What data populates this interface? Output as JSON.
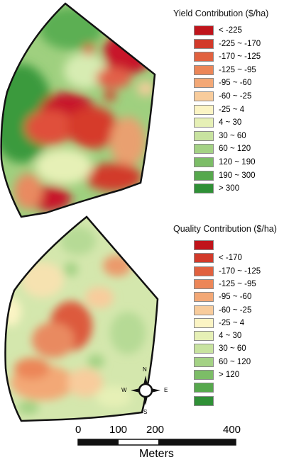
{
  "yield_legend": {
    "title": "Yield Contribution ($/ha)",
    "items": [
      {
        "label": "< -225",
        "color": "#c0141b"
      },
      {
        "label": "-225 ~ -170",
        "color": "#d23a2a"
      },
      {
        "label": "-170 ~ -125",
        "color": "#e1613f"
      },
      {
        "label": "-125 ~ -95",
        "color": "#ec8658"
      },
      {
        "label": "-95 ~ -60",
        "color": "#f3a876"
      },
      {
        "label": "-60 ~ -25",
        "color": "#f8cc9c"
      },
      {
        "label": "-25 ~ 4",
        "color": "#fbf4c4"
      },
      {
        "label": "4 ~ 30",
        "color": "#e6f0b6"
      },
      {
        "label": "30 ~ 60",
        "color": "#c8e3a0"
      },
      {
        "label": "60 ~ 120",
        "color": "#a4d285"
      },
      {
        "label": "120 ~ 190",
        "color": "#7cbd67"
      },
      {
        "label": "190 ~  300",
        "color": "#56a84d"
      },
      {
        "label": "> 300",
        "color": "#2f9036"
      }
    ]
  },
  "quality_legend": {
    "title": "Quality Contribution ($/ha)",
    "items": [
      {
        "label": "",
        "color": "#c0141b"
      },
      {
        "label": "< -170",
        "color": "#d23a2a"
      },
      {
        "label": "-170 ~ -125",
        "color": "#e1613f"
      },
      {
        "label": "-125 ~ -95",
        "color": "#ec8658"
      },
      {
        "label": "-95 ~ -60",
        "color": "#f3a876"
      },
      {
        "label": "-60 ~ -25",
        "color": "#f8cc9c"
      },
      {
        "label": "-25 ~ 4",
        "color": "#fbf4c4"
      },
      {
        "label": "4 ~ 30",
        "color": "#e6f0b6"
      },
      {
        "label": "30 ~ 60",
        "color": "#c8e3a0"
      },
      {
        "label": "60 ~ 120",
        "color": "#a4d285"
      },
      {
        "label": "> 120",
        "color": "#7cbd67"
      },
      {
        "label": "",
        "color": "#56a84d"
      },
      {
        "label": "",
        "color": "#2f9036"
      }
    ]
  },
  "scale_bar": {
    "ticks": [
      "0",
      "100",
      "200",
      "400"
    ],
    "units": "Meters"
  },
  "compass": {
    "n": "N",
    "s": "S",
    "e": "E",
    "w": "W"
  }
}
